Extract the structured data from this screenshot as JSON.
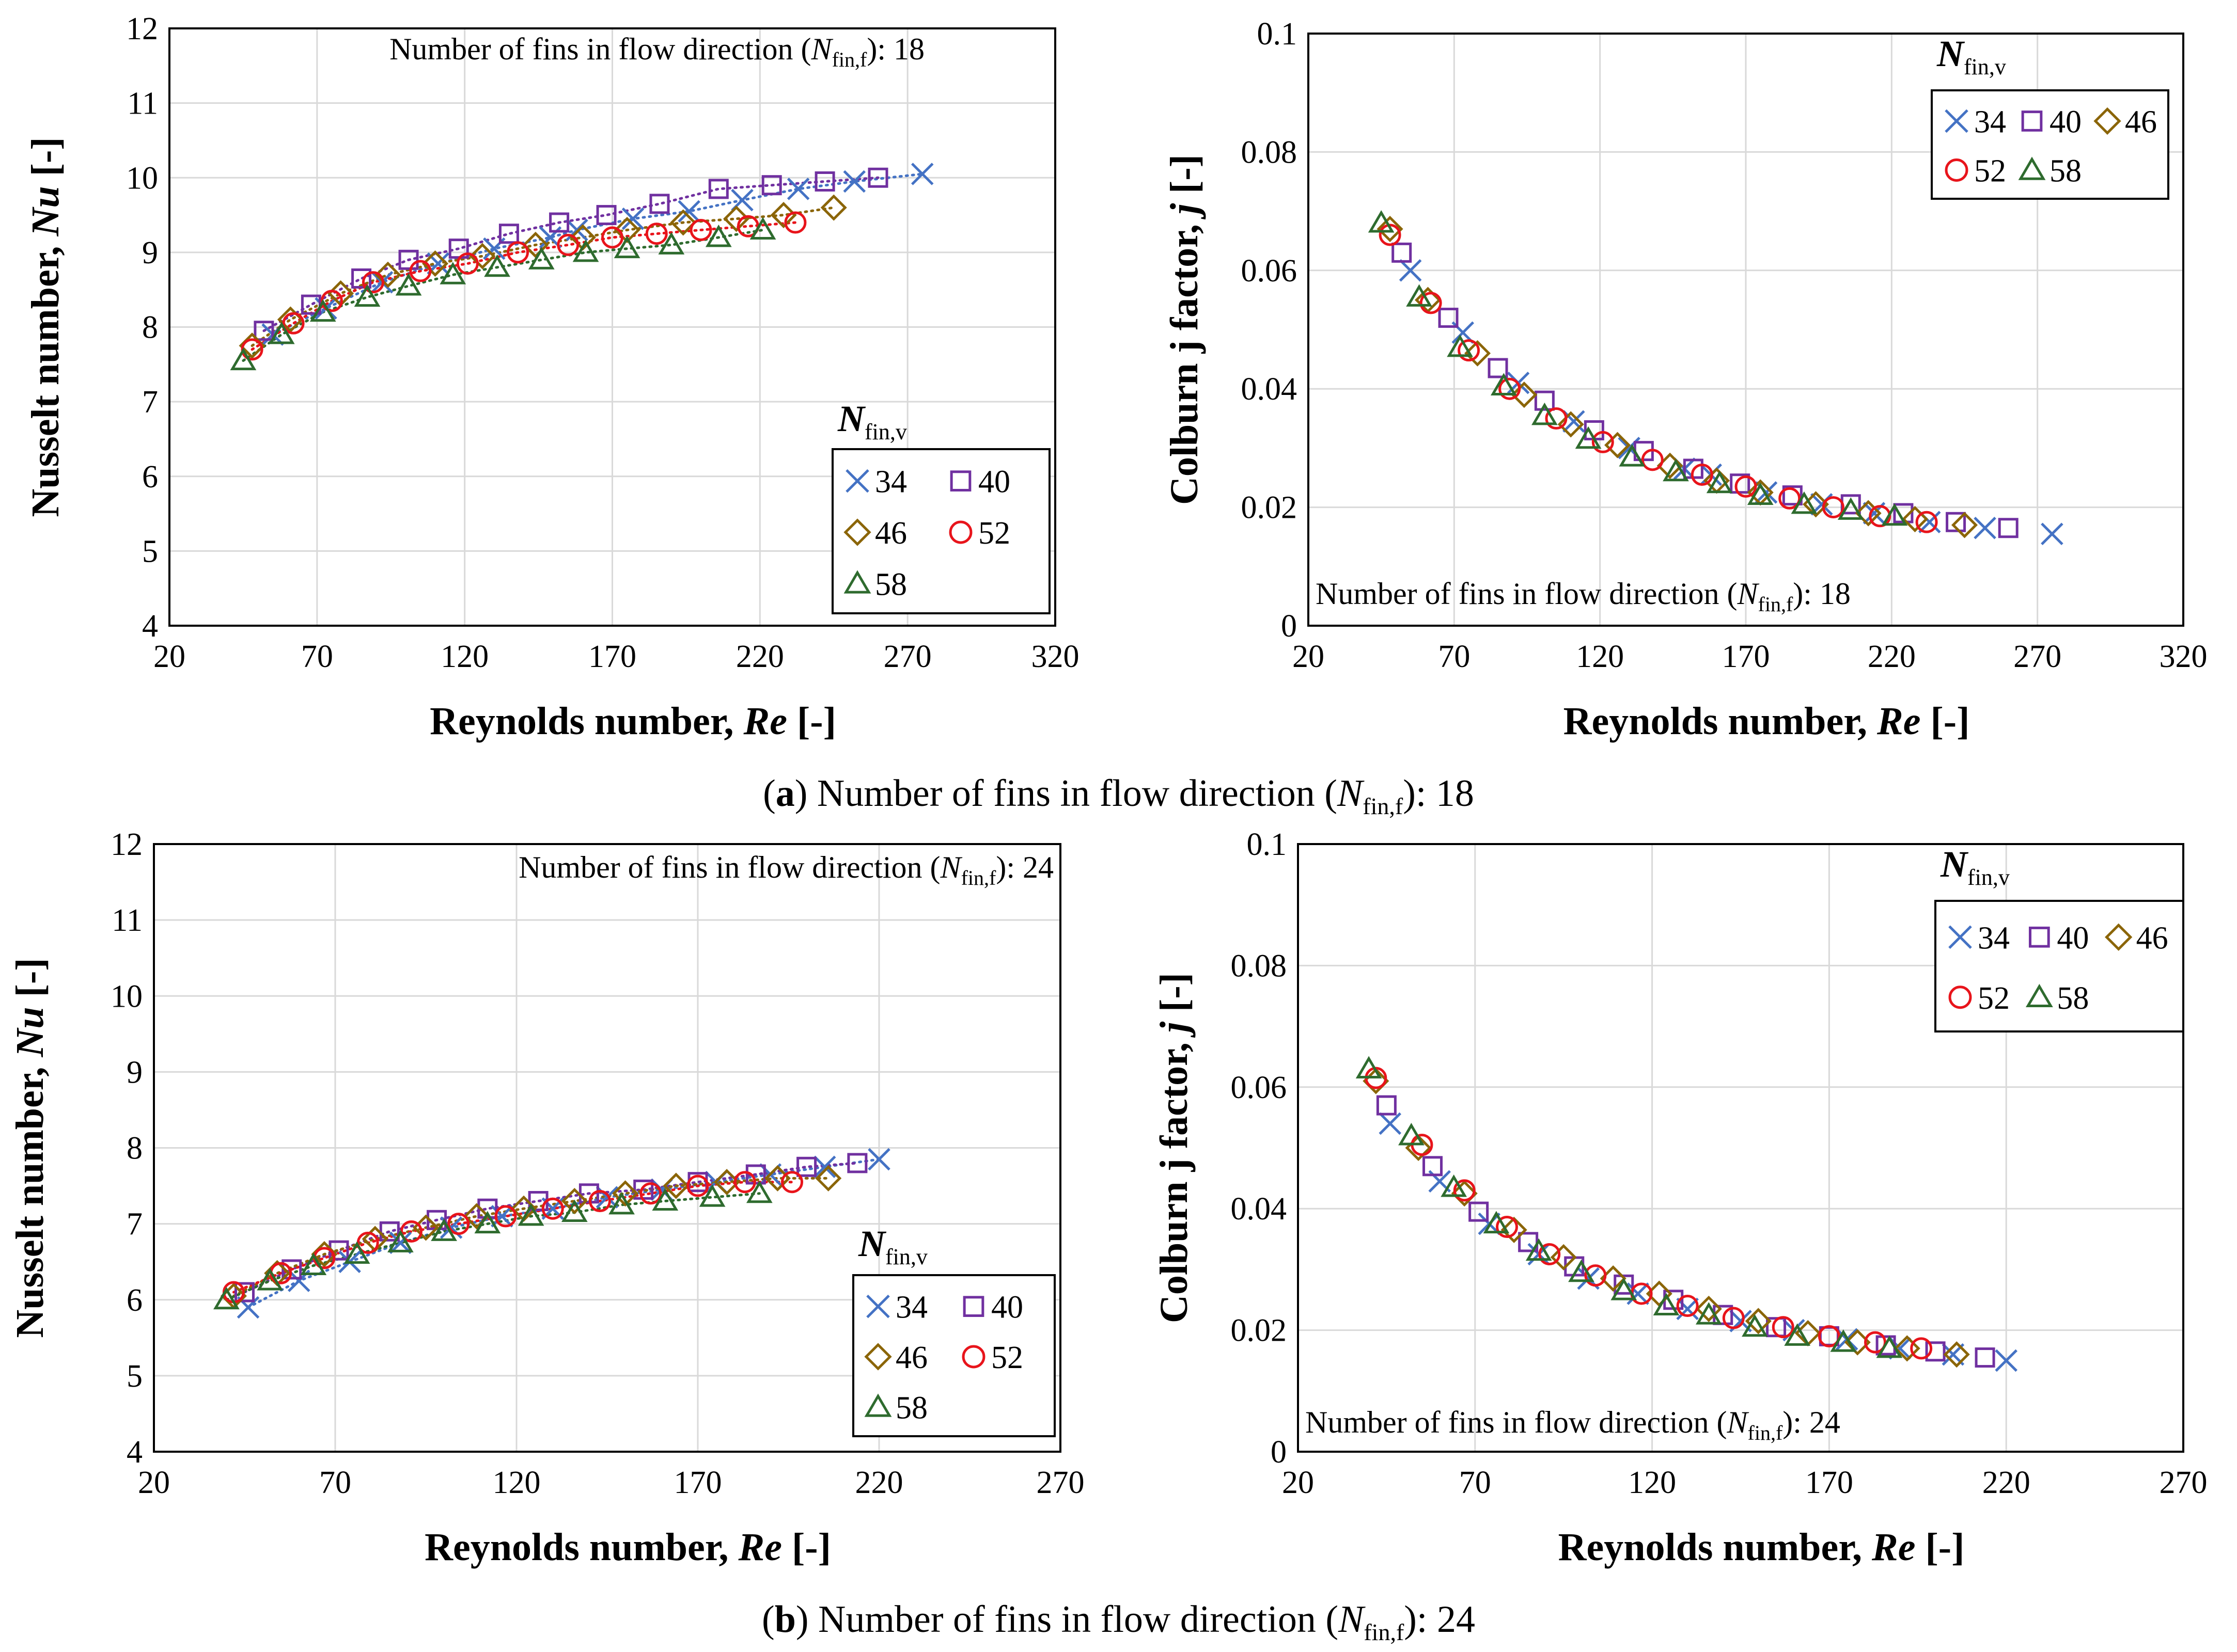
{
  "colors": {
    "34": "#4472c4",
    "40": "#7030a0",
    "46": "#8b6508",
    "52": "#e8141b",
    "58": "#2e6b2e",
    "frame": "#000000",
    "grid": "#d9d9d9"
  },
  "markers": {
    "34": "x",
    "40": "square",
    "46": "diamond",
    "52": "circle",
    "58": "triangle"
  },
  "captions": {
    "a": {
      "letter": "a",
      "text": ") Number of fins in flow direction (",
      "sym": "N",
      "sub": "fin,f",
      "tail": "): 18"
    },
    "b": {
      "letter": "b",
      "text": ") Number of fins in flow direction (",
      "sym": "N",
      "sub": "fin,f",
      "tail": "): 24"
    }
  },
  "chart_data": [
    {
      "id": "a-nu",
      "type": "scatter",
      "xlabel_main": "Reynolds number, ",
      "xlabel_it": "Re",
      "xlabel_tail": " [-]",
      "ylabel_main": "Nusselt number, ",
      "ylabel_it": "Nu",
      "ylabel_tail": " [-]",
      "xlim": [
        20,
        320
      ],
      "ylim": [
        4,
        12
      ],
      "xticks": [
        "20",
        "70",
        "120",
        "170",
        "220",
        "270",
        "320"
      ],
      "yticks": [
        "4",
        "5",
        "6",
        "7",
        "8",
        "9",
        "10",
        "11",
        "12"
      ],
      "annotation": {
        "pre": "Number of fins in flow direction (",
        "sym": "N",
        "sub": "fin,f",
        "post": "): 18"
      },
      "legend": {
        "title_sym": "N",
        "title_sub": "fin,v",
        "entries": [
          "34",
          "40",
          "46",
          "52",
          "58"
        ]
      },
      "trendlines": true,
      "series": [
        {
          "name": "34",
          "x": [
            55,
            73,
            92,
            111,
            130,
            149,
            158,
            177,
            196,
            214,
            233,
            252,
            275
          ],
          "y": [
            7.9,
            8.25,
            8.6,
            8.85,
            9.05,
            9.2,
            9.3,
            9.45,
            9.55,
            9.7,
            9.85,
            9.95,
            10.05
          ]
        },
        {
          "name": "40",
          "x": [
            52,
            68,
            85,
            101,
            118,
            135,
            152,
            168,
            186,
            206,
            224,
            242,
            260
          ],
          "y": [
            7.95,
            8.3,
            8.65,
            8.9,
            9.05,
            9.25,
            9.4,
            9.5,
            9.65,
            9.85,
            9.9,
            9.95,
            10.0
          ]
        },
        {
          "name": "46",
          "x": [
            48,
            61,
            78,
            94,
            110,
            126,
            144,
            160,
            175,
            194,
            212,
            228,
            245
          ],
          "y": [
            7.75,
            8.1,
            8.45,
            8.7,
            8.85,
            8.95,
            9.1,
            9.2,
            9.3,
            9.4,
            9.45,
            9.5,
            9.6
          ]
        },
        {
          "name": "52",
          "x": [
            48,
            62,
            75,
            89,
            105,
            121,
            138,
            155,
            170,
            185,
            200,
            216,
            232
          ],
          "y": [
            7.7,
            8.05,
            8.35,
            8.6,
            8.75,
            8.85,
            9.0,
            9.1,
            9.2,
            9.25,
            9.3,
            9.35,
            9.4
          ]
        },
        {
          "name": "58",
          "x": [
            45,
            58,
            72,
            87,
            101,
            116,
            131,
            146,
            161,
            175,
            190,
            206,
            221
          ],
          "y": [
            7.55,
            7.9,
            8.2,
            8.4,
            8.55,
            8.7,
            8.8,
            8.9,
            9.0,
            9.05,
            9.1,
            9.2,
            9.3
          ]
        }
      ]
    },
    {
      "id": "a-j",
      "type": "scatter",
      "xlabel_main": "Reynolds number, ",
      "xlabel_it": "Re",
      "xlabel_tail": " [-]",
      "ylabel_main": "Colburn j factor, ",
      "ylabel_it": "j",
      "ylabel_tail": " [-]",
      "xlim": [
        20,
        320
      ],
      "ylim": [
        0,
        0.1
      ],
      "xticks": [
        "20",
        "70",
        "120",
        "170",
        "220",
        "270",
        "320"
      ],
      "yticks": [
        "0",
        "0.02",
        "0.04",
        "0.06",
        "0.08",
        "0.1"
      ],
      "annotation": {
        "pre": "Number of fins in flow direction (",
        "sym": "N",
        "sub": "fin,f",
        "post": "): 18"
      },
      "legend": {
        "title_sym": "N",
        "title_sub": "fin,v",
        "entries": [
          "34",
          "40",
          "46",
          "52",
          "58"
        ]
      },
      "trendlines": false,
      "series": [
        {
          "name": "34",
          "x": [
            55,
            73,
            92,
            111,
            130,
            149,
            158,
            177,
            196,
            214,
            233,
            252,
            275
          ],
          "y": [
            0.06,
            0.0495,
            0.041,
            0.0345,
            0.03,
            0.0265,
            0.0255,
            0.0225,
            0.0205,
            0.019,
            0.0175,
            0.0165,
            0.0155
          ]
        },
        {
          "name": "40",
          "x": [
            52,
            68,
            85,
            101,
            118,
            135,
            152,
            168,
            186,
            206,
            224,
            242,
            260
          ],
          "y": [
            0.063,
            0.052,
            0.0435,
            0.038,
            0.033,
            0.0295,
            0.0265,
            0.024,
            0.022,
            0.0205,
            0.019,
            0.0175,
            0.0165
          ]
        },
        {
          "name": "46",
          "x": [
            48,
            61,
            78,
            94,
            110,
            126,
            144,
            160,
            175,
            194,
            212,
            228,
            245
          ],
          "y": [
            0.067,
            0.055,
            0.046,
            0.039,
            0.034,
            0.0305,
            0.027,
            0.0245,
            0.0225,
            0.0205,
            0.019,
            0.018,
            0.017
          ]
        },
        {
          "name": "52",
          "x": [
            48,
            62,
            75,
            89,
            105,
            121,
            138,
            155,
            170,
            185,
            200,
            216,
            232
          ],
          "y": [
            0.066,
            0.0545,
            0.0465,
            0.04,
            0.035,
            0.031,
            0.028,
            0.0255,
            0.0235,
            0.0215,
            0.02,
            0.0185,
            0.0175
          ]
        },
        {
          "name": "58",
          "x": [
            45,
            58,
            72,
            87,
            101,
            116,
            131,
            146,
            161,
            175,
            190,
            206,
            221
          ],
          "y": [
            0.068,
            0.0555,
            0.047,
            0.0405,
            0.0355,
            0.0315,
            0.0285,
            0.026,
            0.024,
            0.022,
            0.0205,
            0.0195,
            0.0185
          ]
        }
      ]
    },
    {
      "id": "b-nu",
      "type": "scatter",
      "xlabel_main": "Reynolds number, ",
      "xlabel_it": "Re",
      "xlabel_tail": " [-]",
      "ylabel_main": "Nusselt number, ",
      "ylabel_it": "Nu",
      "ylabel_tail": " [-]",
      "xlim": [
        20,
        270
      ],
      "ylim": [
        4,
        12
      ],
      "xticks": [
        "20",
        "70",
        "120",
        "170",
        "220",
        "270"
      ],
      "yticks": [
        "4",
        "5",
        "6",
        "7",
        "8",
        "9",
        "10",
        "11",
        "12"
      ],
      "annotation": {
        "pre": "Number of fins in flow direction (",
        "sym": "N",
        "sub": "fin,f",
        "post": "): 24"
      },
      "legend": {
        "title_sym": "N",
        "title_sub": "fin,v",
        "entries": [
          "34",
          "40",
          "46",
          "52",
          "58"
        ]
      },
      "trendlines": true,
      "series": [
        {
          "name": "34",
          "x": [
            46,
            60,
            74,
            88,
            102,
            116,
            130,
            145,
            160,
            175,
            190,
            205,
            220
          ],
          "y": [
            5.9,
            6.25,
            6.5,
            6.75,
            6.95,
            7.1,
            7.2,
            7.35,
            7.45,
            7.55,
            7.65,
            7.75,
            7.85
          ]
        },
        {
          "name": "40",
          "x": [
            45,
            58,
            71,
            85,
            98,
            112,
            126,
            140,
            155,
            170,
            186,
            200,
            214
          ],
          "y": [
            6.1,
            6.4,
            6.65,
            6.9,
            7.05,
            7.2,
            7.3,
            7.4,
            7.45,
            7.55,
            7.65,
            7.75,
            7.8
          ]
        },
        {
          "name": "46",
          "x": [
            42,
            54,
            67,
            81,
            95,
            109,
            122,
            136,
            150,
            164,
            178,
            192,
            206
          ],
          "y": [
            6.05,
            6.35,
            6.6,
            6.8,
            6.95,
            7.1,
            7.2,
            7.3,
            7.4,
            7.5,
            7.55,
            7.6,
            7.6
          ]
        },
        {
          "name": "52",
          "x": [
            42,
            55,
            67,
            79,
            91,
            104,
            117,
            130,
            143,
            157,
            170,
            183,
            196
          ],
          "y": [
            6.1,
            6.35,
            6.55,
            6.75,
            6.9,
            7.0,
            7.1,
            7.2,
            7.3,
            7.4,
            7.5,
            7.55,
            7.55
          ]
        },
        {
          "name": "58",
          "x": [
            40,
            52,
            64,
            76,
            88,
            100,
            112,
            124,
            136,
            149,
            161,
            174,
            187
          ],
          "y": [
            6.0,
            6.25,
            6.45,
            6.6,
            6.75,
            6.9,
            7.0,
            7.1,
            7.15,
            7.25,
            7.3,
            7.35,
            7.4
          ]
        }
      ]
    },
    {
      "id": "b-j",
      "type": "scatter",
      "xlabel_main": "Reynolds number, ",
      "xlabel_it": "Re",
      "xlabel_tail": " [-]",
      "ylabel_main": "Colburn j factor, ",
      "ylabel_it": "j",
      "ylabel_tail": " [-]",
      "xlim": [
        20,
        270
      ],
      "ylim": [
        0,
        0.1
      ],
      "xticks": [
        "20",
        "70",
        "120",
        "170",
        "220",
        "270"
      ],
      "yticks": [
        "0",
        "0.02",
        "0.04",
        "0.06",
        "0.08",
        "0.1"
      ],
      "annotation": {
        "pre": "Number of fins in flow direction (",
        "sym": "N",
        "sub": "fin,f",
        "post": "): 24"
      },
      "legend": {
        "title_sym": "N",
        "title_sub": "fin,v",
        "entries": [
          "34",
          "40",
          "46",
          "52",
          "58"
        ]
      },
      "trendlines": false,
      "series": [
        {
          "name": "34",
          "x": [
            46,
            60,
            74,
            88,
            102,
            116,
            130,
            145,
            160,
            175,
            190,
            205,
            220
          ],
          "y": [
            0.054,
            0.0445,
            0.0375,
            0.0325,
            0.0285,
            0.026,
            0.0235,
            0.0215,
            0.02,
            0.0185,
            0.017,
            0.016,
            0.015
          ]
        },
        {
          "name": "40",
          "x": [
            45,
            58,
            71,
            85,
            98,
            112,
            126,
            140,
            155,
            170,
            186,
            200,
            214
          ],
          "y": [
            0.057,
            0.047,
            0.0395,
            0.0345,
            0.0305,
            0.0275,
            0.025,
            0.0225,
            0.0205,
            0.019,
            0.0175,
            0.0165,
            0.0155
          ]
        },
        {
          "name": "46",
          "x": [
            42,
            54,
            67,
            81,
            95,
            109,
            122,
            136,
            150,
            164,
            178,
            192,
            206
          ],
          "y": [
            0.061,
            0.05,
            0.0425,
            0.0365,
            0.032,
            0.0285,
            0.026,
            0.0235,
            0.0215,
            0.0195,
            0.018,
            0.017,
            0.016
          ]
        },
        {
          "name": "52",
          "x": [
            42,
            55,
            67,
            79,
            91,
            104,
            117,
            130,
            143,
            157,
            170,
            183,
            196
          ],
          "y": [
            0.0615,
            0.0505,
            0.043,
            0.037,
            0.0325,
            0.029,
            0.026,
            0.024,
            0.022,
            0.0205,
            0.019,
            0.018,
            0.017
          ]
        },
        {
          "name": "58",
          "x": [
            40,
            52,
            64,
            76,
            88,
            100,
            112,
            124,
            136,
            149,
            161,
            174,
            187
          ],
          "y": [
            0.063,
            0.052,
            0.0435,
            0.0375,
            0.033,
            0.0295,
            0.0265,
            0.024,
            0.0225,
            0.0205,
            0.019,
            0.018,
            0.017
          ]
        }
      ]
    }
  ]
}
